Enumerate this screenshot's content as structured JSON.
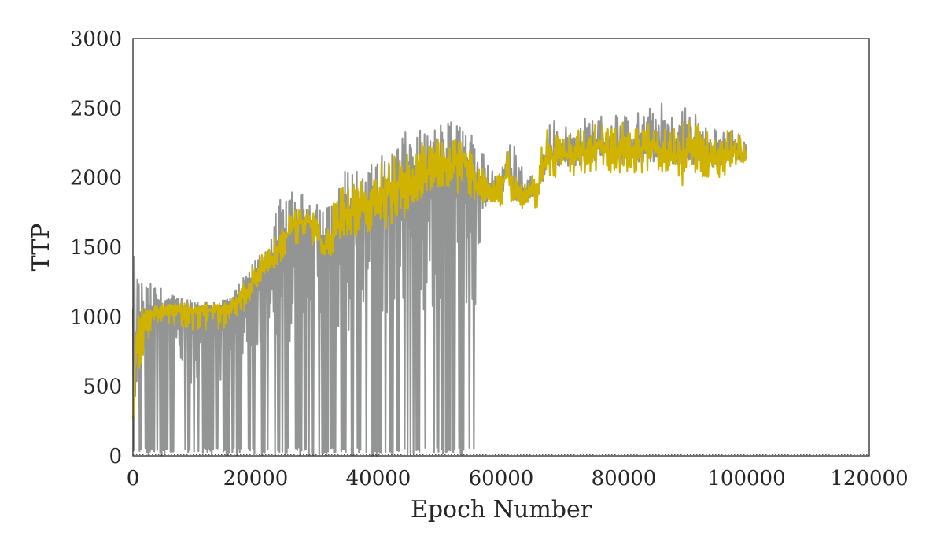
{
  "chart_data": {
    "type": "line",
    "title": "",
    "xlabel": "Epoch Number",
    "ylabel": "TTP",
    "xlim": [
      0,
      120000
    ],
    "ylim": [
      0,
      3000
    ],
    "xticks": [
      0,
      20000,
      40000,
      60000,
      80000,
      100000,
      120000
    ],
    "xtick_labels": [
      "0",
      "20000",
      "40000",
      "60000",
      "80000",
      "100000",
      "120000"
    ],
    "yticks": [
      0,
      500,
      1000,
      1500,
      2000,
      2500,
      3000
    ],
    "ytick_labels": [
      "0",
      "500",
      "1000",
      "1500",
      "2000",
      "2500",
      "3000"
    ],
    "grid": false,
    "legend": "none",
    "series": [
      {
        "color": "#939594",
        "role": "raw",
        "x": [
          0,
          1000,
          2000,
          4000,
          6000,
          8000,
          10000,
          12000,
          14000,
          16000,
          18000,
          20000,
          22000,
          24000,
          26000,
          28000,
          30000,
          32000,
          34000,
          36000,
          38000,
          40000,
          42000,
          44000,
          46000,
          48000,
          50000,
          52000,
          54000,
          56000,
          58000,
          60000,
          62000,
          64000,
          66000,
          68000,
          70000,
          72000,
          74000,
          76000,
          78000,
          80000,
          82000,
          84000,
          86000,
          88000,
          90000,
          92000,
          94000,
          96000,
          98000,
          100000
        ],
        "max": [
          1480,
          1300,
          1250,
          1230,
          1160,
          1140,
          1130,
          1120,
          1120,
          1150,
          1280,
          1420,
          1550,
          1850,
          1900,
          1880,
          1870,
          1800,
          2050,
          2070,
          2080,
          2150,
          2200,
          2320,
          2350,
          2330,
          2400,
          2420,
          2380,
          2300,
          2150,
          2050,
          2350,
          2000,
          2050,
          2450,
          2400,
          2350,
          2450,
          2450,
          2500,
          2450,
          2480,
          2500,
          2550,
          2450,
          2550,
          2450,
          2400,
          2350,
          2350,
          2250
        ],
        "min": [
          0,
          0,
          0,
          0,
          0,
          0,
          0,
          0,
          0,
          0,
          0,
          0,
          0,
          0,
          0,
          0,
          0,
          0,
          0,
          0,
          0,
          0,
          0,
          0,
          0,
          0,
          0,
          0,
          0,
          0,
          1780,
          1800,
          1780,
          1780,
          1780,
          1950,
          2000,
          2000,
          2000,
          2000,
          2000,
          2000,
          2000,
          2000,
          2000,
          2000,
          2000,
          2000,
          2000,
          2000,
          2000,
          2100
        ]
      },
      {
        "color": "#cfb300",
        "role": "smoothed",
        "x": [
          0,
          500,
          1000,
          2000,
          3000,
          4000,
          6000,
          8000,
          10000,
          12000,
          14000,
          16000,
          18000,
          20000,
          22000,
          24000,
          26000,
          28000,
          30000,
          31000,
          32000,
          34000,
          36000,
          38000,
          40000,
          42000,
          44000,
          46000,
          48000,
          50000,
          52000,
          54000,
          56000,
          58000,
          60000,
          61000,
          62000,
          64000,
          66000,
          67000,
          68000,
          70000,
          72000,
          74000,
          76000,
          78000,
          80000,
          82000,
          84000,
          86000,
          88000,
          90000,
          92000,
          94000,
          96000,
          98000,
          100000
        ],
        "y": [
          250,
          800,
          950,
          980,
          1020,
          1050,
          1070,
          1060,
          1040,
          1050,
          1060,
          1080,
          1150,
          1300,
          1380,
          1500,
          1650,
          1700,
          1650,
          1450,
          1550,
          1700,
          1780,
          1800,
          1850,
          1920,
          1980,
          2000,
          2050,
          2080,
          2100,
          2120,
          1950,
          1900,
          1850,
          2100,
          1880,
          1900,
          1900,
          2100,
          2150,
          2180,
          2150,
          2200,
          2250,
          2180,
          2200,
          2200,
          2230,
          2200,
          2150,
          2200,
          2180,
          2150,
          2150,
          2200,
          2150
        ],
        "min": [
          150,
          400,
          600,
          750,
          900,
          950,
          950,
          920,
          900,
          900,
          900,
          920,
          1000,
          1200,
          1300,
          1380,
          1480,
          1550,
          1480,
          1380,
          1400,
          1550,
          1600,
          1500,
          1600,
          1650,
          1700,
          1800,
          1850,
          1900,
          1950,
          1800,
          1850,
          1800,
          1780,
          1800,
          1780,
          1780,
          1780,
          1950,
          2000,
          2000,
          2000,
          2020,
          2050,
          2000,
          2020,
          2000,
          2050,
          2020,
          2000,
          1900,
          2000,
          2000,
          2000,
          2050,
          2100
        ],
        "max": [
          500,
          1050,
          1060,
          1080,
          1080,
          1090,
          1100,
          1100,
          1100,
          1100,
          1100,
          1120,
          1250,
          1400,
          1500,
          1650,
          1800,
          1780,
          1750,
          1650,
          1750,
          1950,
          1950,
          2000,
          2100,
          2150,
          2250,
          2250,
          2300,
          2300,
          2300,
          2300,
          2150,
          2000,
          2050,
          2300,
          2000,
          2050,
          2050,
          2400,
          2350,
          2300,
          2350,
          2400,
          2400,
          2350,
          2400,
          2350,
          2400,
          2350,
          2350,
          2450,
          2400,
          2350,
          2300,
          2400,
          2200
        ]
      }
    ]
  }
}
